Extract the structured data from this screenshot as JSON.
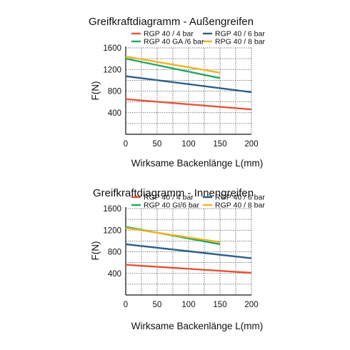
{
  "chart_data": [
    {
      "type": "line",
      "title": "Greifkraftdiagramm - Außengreifen",
      "xlabel": "Wirksame Backenlänge L(mm)",
      "ylabel": "F(N)",
      "xlim": [
        0,
        200
      ],
      "ylim": [
        0,
        1600
      ],
      "xticks": [
        0,
        50,
        100,
        150,
        200
      ],
      "yticks": [
        400,
        800,
        1200,
        1600
      ],
      "grid": true,
      "legend_position": "top",
      "series": [
        {
          "name": "RGP 40 / 4 bar",
          "color": "#e0563a",
          "x": [
            0,
            200
          ],
          "y": [
            650,
            460
          ]
        },
        {
          "name": "RGP 40 / 6 bar",
          "color": "#2d5f8a",
          "x": [
            0,
            200
          ],
          "y": [
            1075,
            780
          ]
        },
        {
          "name": "RGP 40 GA /6 bar",
          "color": "#1fa862",
          "x": [
            0,
            150
          ],
          "y": [
            1400,
            1040
          ]
        },
        {
          "name": "RPG 40 / 8 bar",
          "color": "#f2b227",
          "x": [
            0,
            150
          ],
          "y": [
            1440,
            1140
          ]
        }
      ]
    },
    {
      "type": "line",
      "title": "Greifkraftdiagramm - Innengreifen",
      "xlabel": "Wirksame Backenlänge L(mm)",
      "ylabel": "F(N)",
      "xlim": [
        0,
        200
      ],
      "ylim": [
        0,
        1600
      ],
      "xticks": [
        0,
        50,
        100,
        150,
        200
      ],
      "yticks": [
        400,
        800,
        1200,
        1600
      ],
      "grid": true,
      "legend_position": "top",
      "series": [
        {
          "name": "RGP 40 / 4 bar",
          "color": "#e0563a",
          "x": [
            0,
            200
          ],
          "y": [
            560,
            410
          ]
        },
        {
          "name": "RGP 40 / 6 bar",
          "color": "#2d5f8a",
          "x": [
            0,
            200
          ],
          "y": [
            940,
            680
          ]
        },
        {
          "name": "RGP 40 GI/6 bar",
          "color": "#1fa862",
          "x": [
            0,
            150
          ],
          "y": [
            1260,
            940
          ]
        },
        {
          "name": "RGP 40 / 8 bar",
          "color": "#f2b227",
          "x": [
            0,
            150
          ],
          "y": [
            1240,
            980
          ]
        }
      ]
    }
  ]
}
